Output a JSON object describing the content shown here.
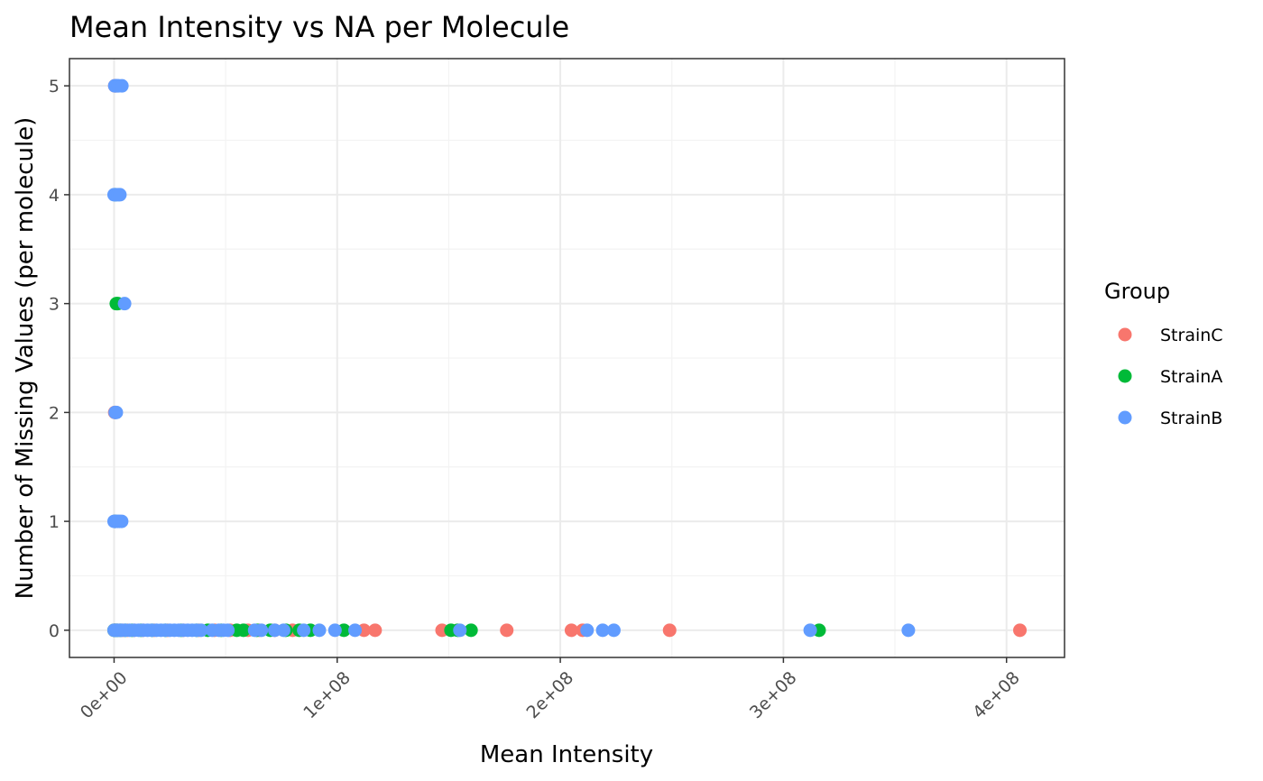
{
  "chart_data": {
    "type": "scatter",
    "title": "Mean Intensity vs NA per Molecule",
    "xlabel": "Mean Intensity",
    "ylabel": "Number of Missing Values (per molecule)",
    "xlim": [
      -20000000,
      426000000
    ],
    "ylim": [
      -0.25,
      5.25
    ],
    "x_ticks": [
      0,
      100000000,
      200000000,
      300000000,
      400000000
    ],
    "x_tick_labels": [
      "0e+00",
      "1e+08",
      "2e+08",
      "3e+08",
      "4e+08"
    ],
    "y_ticks": [
      0,
      1,
      2,
      3,
      4,
      5
    ],
    "y_tick_labels": [
      "0",
      "1",
      "2",
      "3",
      "4",
      "5"
    ],
    "grid": true,
    "legend": {
      "title": "Group",
      "placement": "right"
    },
    "series": [
      {
        "name": "StrainC",
        "color": "#F8766D",
        "points": [
          [
            0,
            0
          ],
          [
            500000,
            0
          ],
          [
            1200000,
            0
          ],
          [
            2500000,
            0
          ],
          [
            4000000,
            0
          ],
          [
            6000000,
            0
          ],
          [
            9000000,
            0
          ],
          [
            13000000,
            0
          ],
          [
            18000000,
            0
          ],
          [
            24000000,
            0
          ],
          [
            31000000,
            0
          ],
          [
            38000000,
            0
          ],
          [
            45000000,
            0
          ],
          [
            52000000,
            0
          ],
          [
            60000000,
            0
          ],
          [
            65000000,
            0
          ],
          [
            72000000,
            0
          ],
          [
            80000000,
            0
          ],
          [
            112000000,
            0
          ],
          [
            117000000,
            0
          ],
          [
            147000000,
            0
          ],
          [
            176000000,
            0
          ],
          [
            205000000,
            0
          ],
          [
            210000000,
            0
          ],
          [
            249000000,
            0
          ],
          [
            406000000,
            0
          ],
          [
            300000,
            5
          ],
          [
            700000,
            5
          ],
          [
            400000,
            1
          ],
          [
            300000,
            2
          ]
        ]
      },
      {
        "name": "StrainA",
        "color": "#00BA38",
        "points": [
          [
            0,
            0
          ],
          [
            600000,
            0
          ],
          [
            1500000,
            0
          ],
          [
            3000000,
            0
          ],
          [
            5000000,
            0
          ],
          [
            8000000,
            0
          ],
          [
            12000000,
            0
          ],
          [
            17000000,
            0
          ],
          [
            23000000,
            0
          ],
          [
            30000000,
            0
          ],
          [
            37000000,
            0
          ],
          [
            42000000,
            0
          ],
          [
            48000000,
            0
          ],
          [
            55000000,
            0
          ],
          [
            58000000,
            0
          ],
          [
            64000000,
            0
          ],
          [
            70000000,
            0
          ],
          [
            77000000,
            0
          ],
          [
            83000000,
            0
          ],
          [
            88000000,
            0
          ],
          [
            103000000,
            0
          ],
          [
            151000000,
            0
          ],
          [
            154000000,
            0
          ],
          [
            160000000,
            0
          ],
          [
            316000000,
            0
          ],
          [
            1000000,
            3
          ],
          [
            1600000,
            3
          ],
          [
            500000,
            4
          ],
          [
            400000,
            1
          ]
        ]
      },
      {
        "name": "StrainB",
        "color": "#619CFF",
        "points": [
          [
            0,
            0
          ],
          [
            700000,
            0
          ],
          [
            1500000,
            0
          ],
          [
            2500000,
            0
          ],
          [
            3500000,
            0
          ],
          [
            5000000,
            0
          ],
          [
            7000000,
            0
          ],
          [
            9000000,
            0
          ],
          [
            11000000,
            0
          ],
          [
            13000000,
            0
          ],
          [
            15000000,
            0
          ],
          [
            17000000,
            0
          ],
          [
            19000000,
            0
          ],
          [
            21000000,
            0
          ],
          [
            23000000,
            0
          ],
          [
            25000000,
            0
          ],
          [
            27000000,
            0
          ],
          [
            29000000,
            0
          ],
          [
            31000000,
            0
          ],
          [
            33000000,
            0
          ],
          [
            35000000,
            0
          ],
          [
            37000000,
            0
          ],
          [
            39000000,
            0
          ],
          [
            44000000,
            0
          ],
          [
            47000000,
            0
          ],
          [
            49000000,
            0
          ],
          [
            51000000,
            0
          ],
          [
            63000000,
            0
          ],
          [
            66000000,
            0
          ],
          [
            72000000,
            0
          ],
          [
            76000000,
            0
          ],
          [
            85000000,
            0
          ],
          [
            92000000,
            0
          ],
          [
            99000000,
            0
          ],
          [
            108000000,
            0
          ],
          [
            155000000,
            0
          ],
          [
            212000000,
            0
          ],
          [
            219000000,
            0
          ],
          [
            224000000,
            0
          ],
          [
            312000000,
            0
          ],
          [
            356000000,
            0
          ],
          [
            300000,
            5
          ],
          [
            800000,
            5
          ],
          [
            1400000,
            5
          ],
          [
            2000000,
            5
          ],
          [
            3500000,
            5
          ],
          [
            0,
            4
          ],
          [
            900000,
            4
          ],
          [
            1800000,
            4
          ],
          [
            2600000,
            4
          ],
          [
            4700000,
            3
          ],
          [
            500000,
            2
          ],
          [
            1000000,
            2
          ],
          [
            0,
            1
          ],
          [
            800000,
            1
          ],
          [
            1600000,
            1
          ],
          [
            2400000,
            1
          ],
          [
            3400000,
            1
          ]
        ]
      }
    ]
  }
}
